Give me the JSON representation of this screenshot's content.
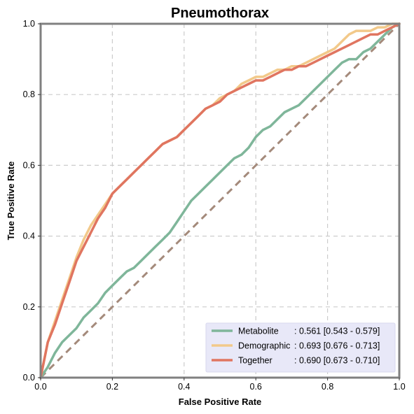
{
  "chart_data": {
    "type": "line",
    "title": "Pneumothorax",
    "xlabel": "False Positive Rate",
    "ylabel": "True Positive Rate",
    "xlim": [
      0,
      1
    ],
    "ylim": [
      0,
      1
    ],
    "x_ticks": [
      "0.0",
      "0.2",
      "0.4",
      "0.6",
      "0.8",
      "1.0"
    ],
    "y_ticks": [
      "0.0",
      "0.2",
      "0.4",
      "0.6",
      "0.8",
      "1.0"
    ],
    "grid": true,
    "legend_position": "bottom-right",
    "diagonal": {
      "style": "dashed",
      "color": "#a48a7b"
    },
    "series": [
      {
        "name": "Metabolite",
        "stats": ": 0.561 [0.543 - 0.579]",
        "color": "#7fb69a",
        "x": [
          0,
          0.02,
          0.04,
          0.06,
          0.08,
          0.1,
          0.12,
          0.14,
          0.16,
          0.18,
          0.2,
          0.22,
          0.24,
          0.26,
          0.28,
          0.3,
          0.32,
          0.34,
          0.36,
          0.38,
          0.4,
          0.42,
          0.44,
          0.46,
          0.48,
          0.5,
          0.52,
          0.54,
          0.56,
          0.58,
          0.6,
          0.62,
          0.64,
          0.66,
          0.68,
          0.7,
          0.72,
          0.74,
          0.76,
          0.78,
          0.8,
          0.82,
          0.84,
          0.86,
          0.88,
          0.9,
          0.92,
          0.94,
          0.96,
          0.98,
          1.0
        ],
        "y": [
          0,
          0.03,
          0.07,
          0.1,
          0.12,
          0.14,
          0.17,
          0.19,
          0.21,
          0.24,
          0.26,
          0.28,
          0.3,
          0.31,
          0.33,
          0.35,
          0.37,
          0.39,
          0.41,
          0.44,
          0.47,
          0.5,
          0.52,
          0.54,
          0.56,
          0.58,
          0.6,
          0.62,
          0.63,
          0.65,
          0.68,
          0.7,
          0.71,
          0.73,
          0.75,
          0.76,
          0.77,
          0.79,
          0.81,
          0.83,
          0.85,
          0.87,
          0.89,
          0.9,
          0.9,
          0.92,
          0.93,
          0.95,
          0.97,
          0.99,
          1.0
        ]
      },
      {
        "name": "Demographic",
        "stats": ": 0.693 [0.676 - 0.713]",
        "color": "#f2c98a",
        "x": [
          0,
          0.02,
          0.04,
          0.06,
          0.08,
          0.1,
          0.12,
          0.14,
          0.16,
          0.18,
          0.2,
          0.22,
          0.24,
          0.26,
          0.28,
          0.3,
          0.32,
          0.34,
          0.36,
          0.38,
          0.4,
          0.42,
          0.44,
          0.46,
          0.48,
          0.5,
          0.52,
          0.54,
          0.56,
          0.58,
          0.6,
          0.62,
          0.64,
          0.66,
          0.68,
          0.7,
          0.72,
          0.74,
          0.76,
          0.78,
          0.8,
          0.82,
          0.84,
          0.86,
          0.88,
          0.9,
          0.92,
          0.94,
          0.96,
          0.98,
          1.0
        ],
        "y": [
          0,
          0.1,
          0.16,
          0.22,
          0.28,
          0.34,
          0.39,
          0.43,
          0.46,
          0.49,
          0.52,
          0.54,
          0.56,
          0.58,
          0.6,
          0.62,
          0.64,
          0.66,
          0.67,
          0.68,
          0.7,
          0.72,
          0.74,
          0.76,
          0.77,
          0.79,
          0.8,
          0.81,
          0.83,
          0.84,
          0.85,
          0.85,
          0.86,
          0.87,
          0.87,
          0.88,
          0.88,
          0.89,
          0.9,
          0.91,
          0.92,
          0.93,
          0.95,
          0.97,
          0.98,
          0.98,
          0.98,
          0.99,
          0.99,
          1.0,
          1.0
        ]
      },
      {
        "name": "Together",
        "stats": ": 0.690 [0.673 - 0.710]",
        "color": "#e07560",
        "x": [
          0,
          0.02,
          0.04,
          0.06,
          0.08,
          0.1,
          0.12,
          0.14,
          0.16,
          0.18,
          0.2,
          0.22,
          0.24,
          0.26,
          0.28,
          0.3,
          0.32,
          0.34,
          0.36,
          0.38,
          0.4,
          0.42,
          0.44,
          0.46,
          0.48,
          0.5,
          0.52,
          0.54,
          0.56,
          0.58,
          0.6,
          0.62,
          0.64,
          0.66,
          0.68,
          0.7,
          0.72,
          0.74,
          0.76,
          0.78,
          0.8,
          0.82,
          0.84,
          0.86,
          0.88,
          0.9,
          0.92,
          0.94,
          0.96,
          0.98,
          1.0
        ],
        "y": [
          0,
          0.1,
          0.15,
          0.21,
          0.27,
          0.33,
          0.37,
          0.41,
          0.45,
          0.48,
          0.52,
          0.54,
          0.56,
          0.58,
          0.6,
          0.62,
          0.64,
          0.66,
          0.67,
          0.68,
          0.7,
          0.72,
          0.74,
          0.76,
          0.77,
          0.78,
          0.8,
          0.81,
          0.82,
          0.83,
          0.84,
          0.84,
          0.85,
          0.86,
          0.87,
          0.87,
          0.88,
          0.88,
          0.89,
          0.9,
          0.91,
          0.92,
          0.93,
          0.94,
          0.95,
          0.96,
          0.97,
          0.97,
          0.98,
          0.99,
          1.0
        ]
      }
    ]
  }
}
